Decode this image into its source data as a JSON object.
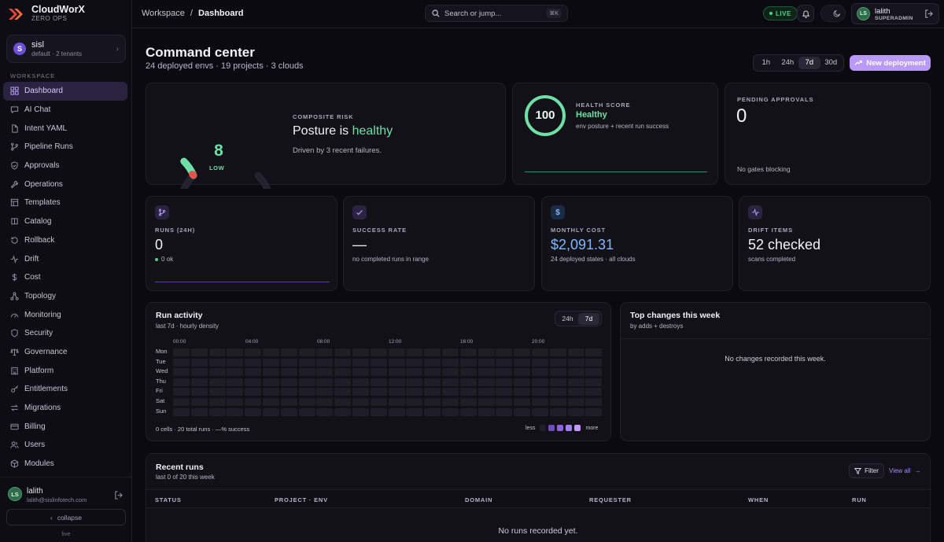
{
  "brand": {
    "name": "CloudWorX",
    "tagline": "ZERO OPS"
  },
  "tenant": {
    "initial": "S",
    "name": "sisl",
    "meta": "default · 2 tenants"
  },
  "sidebar": {
    "section_label": "WORKSPACE",
    "items": [
      {
        "label": "Dashboard",
        "icon": "grid-icon"
      },
      {
        "label": "AI Chat",
        "icon": "chat-icon"
      },
      {
        "label": "Intent YAML",
        "icon": "file-icon"
      },
      {
        "label": "Pipeline Runs",
        "icon": "branch-icon"
      },
      {
        "label": "Approvals",
        "icon": "shield-check-icon"
      },
      {
        "label": "Operations",
        "icon": "wrench-icon"
      },
      {
        "label": "Templates",
        "icon": "template-icon"
      },
      {
        "label": "Catalog",
        "icon": "catalog-icon"
      },
      {
        "label": "Rollback",
        "icon": "rollback-icon"
      },
      {
        "label": "Drift",
        "icon": "pulse-icon"
      },
      {
        "label": "Cost",
        "icon": "dollar-icon"
      },
      {
        "label": "Topology",
        "icon": "topology-icon"
      },
      {
        "label": "Monitoring",
        "icon": "gauge-icon"
      },
      {
        "label": "Security",
        "icon": "shield-icon"
      },
      {
        "label": "Governance",
        "icon": "scale-icon"
      },
      {
        "label": "Platform",
        "icon": "building-icon"
      },
      {
        "label": "Entitlements",
        "icon": "key-icon"
      },
      {
        "label": "Migrations",
        "icon": "arrows-icon"
      },
      {
        "label": "Billing",
        "icon": "card-icon"
      },
      {
        "label": "Users",
        "icon": "users-icon"
      },
      {
        "label": "Modules",
        "icon": "box-icon"
      }
    ],
    "user": {
      "initials": "LS",
      "name": "lalith",
      "email": "lalith@sislinfotech.com"
    },
    "collapse_label": "collapse",
    "status": "live"
  },
  "topbar": {
    "breadcrumb_root": "Workspace",
    "breadcrumb_sep": "/",
    "breadcrumb_current": "Dashboard",
    "search_placeholder": "Search or jump...",
    "search_shortcut": "⌘K",
    "live_label": "LIVE",
    "user": {
      "initials": "LS",
      "name": "lalith",
      "role": "SUPERADMIN"
    }
  },
  "header": {
    "title": "Command center",
    "subtitle": "24 deployed envs · 19 projects · 3 clouds",
    "ranges": [
      "1h",
      "24h",
      "7d",
      "30d"
    ],
    "active_range": "7d",
    "new_deployment": "New deployment"
  },
  "risk": {
    "label": "COMPOSITE RISK",
    "title_prefix": "Posture is",
    "title_status": "healthy",
    "score": "8",
    "level": "LOW",
    "subtitle": "Driven by 3 recent failures.",
    "gauge_fraction": 0.08
  },
  "health": {
    "score": "100",
    "label": "HEALTH SCORE",
    "state": "Healthy",
    "subtitle": "env posture + recent run success"
  },
  "pending": {
    "label": "PENDING APPROVALS",
    "value": "0",
    "subtitle": "No gates blocking"
  },
  "stats": [
    {
      "label": "RUNS (24H)",
      "value": "0",
      "sub": "0 ok",
      "icon": "branch-icon"
    },
    {
      "label": "SUCCESS RATE",
      "value": "—",
      "sub": "no completed runs in range",
      "icon": "check-icon"
    },
    {
      "label": "MONTHLY COST",
      "value": "$2,091.31",
      "sub": "24 deployed states · all clouds",
      "icon": "dollar-icon"
    },
    {
      "label": "DRIFT ITEMS",
      "value": "52 checked",
      "sub": "scans completed",
      "icon": "pulse-icon"
    }
  ],
  "activity": {
    "title": "Run activity",
    "subtitle": "last 7d · hourly density",
    "toggle": [
      "24h",
      "7d"
    ],
    "active_toggle": "7d",
    "hours": [
      "00:00",
      "04:00",
      "08:00",
      "12:00",
      "16:00",
      "20:00"
    ],
    "days": [
      "Mon",
      "Tue",
      "Wed",
      "Thu",
      "Fri",
      "Sat",
      "Sun"
    ],
    "footer": "0 cells · 20 total runs · —% success",
    "legend_less": "less",
    "legend_more": "more",
    "legend_colors": [
      "#221f2c",
      "#6d4cc4",
      "#8a64e0",
      "#a47ef0",
      "#c09cff"
    ]
  },
  "changes": {
    "title": "Top changes this week",
    "subtitle": "by adds + destroys",
    "empty": "No changes recorded this week."
  },
  "runs": {
    "title": "Recent runs",
    "subtitle": "last 0 of 20 this week",
    "filter": "Filter",
    "view_all": "View all",
    "columns": [
      "STATUS",
      "PROJECT · ENV",
      "DOMAIN",
      "REQUESTER",
      "WHEN",
      "RUN"
    ],
    "empty": "No runs recorded yet."
  },
  "colors": {
    "accent": "#b99bf7",
    "healthy": "#6ee0a5",
    "cost": "#7fb8ff"
  }
}
